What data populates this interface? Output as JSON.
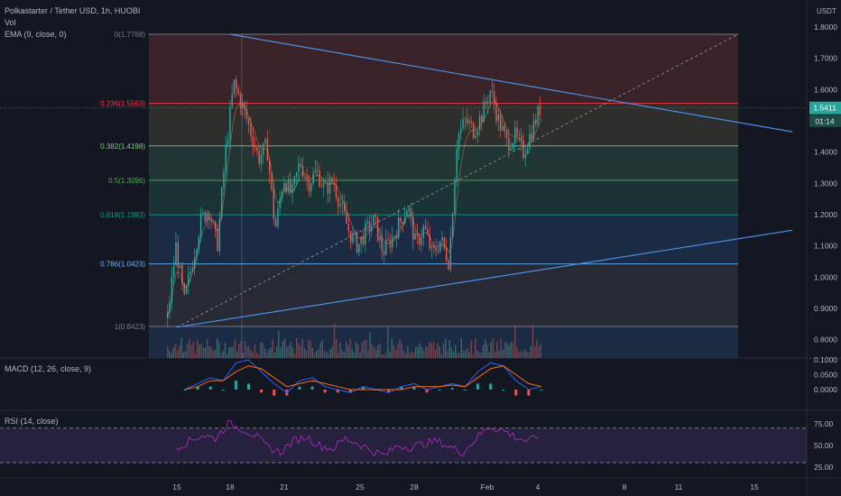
{
  "header": {
    "title": "Polkastarter / Tether USD, 1h, HUOBI",
    "vol_label": "Vol",
    "ema_label": "EMA (9, close, 0)",
    "currency": "USDT"
  },
  "price_tag": {
    "price": "1.5411",
    "countdown": "01:14",
    "color": "#26a69a"
  },
  "chart_data": [
    {
      "type": "candlestick",
      "ylim": [
        0.76,
        1.83
      ],
      "y_ticks": [
        0.8,
        0.9,
        1.0,
        1.1,
        1.2,
        1.3,
        1.4,
        1.5,
        1.6,
        1.7,
        1.8
      ],
      "x_tick_labels": [
        "15",
        "18",
        "21",
        "25",
        "28",
        "Feb",
        "4",
        "8",
        "11",
        "15"
      ],
      "fibonacci": [
        {
          "label": "0(1.7768)",
          "level": 1.7768,
          "color": "#787b86",
          "fill": "#3a2328"
        },
        {
          "label": "0.236(1.5563)",
          "level": 1.5563,
          "color": "#f23645",
          "fill": "#2e2f2c"
        },
        {
          "label": "0.382(1.4198)",
          "level": 1.4198,
          "color": "#81c784",
          "fill": "#213532"
        },
        {
          "label": "0.5(1.3096)",
          "level": 1.3096,
          "color": "#4caf50",
          "fill": "#1a3435"
        },
        {
          "label": "0.618(1.1993)",
          "level": 1.1993,
          "color": "#089981",
          "fill": "#1c2b44"
        },
        {
          "label": "0.786(1.0423)",
          "level": 1.0423,
          "color": "#64b5f6",
          "fill": "#272a34"
        },
        {
          "label": "1(0.8423)",
          "level": 0.8423,
          "color": "#787b86",
          "fill": "#1c2b44"
        }
      ],
      "trendlines": [
        {
          "from": [
            "18",
            1.7768
          ],
          "to": [
            "15'",
            1.465
          ]
        },
        {
          "from": [
            "15",
            0.84
          ],
          "to": [
            "15'",
            1.15
          ]
        }
      ],
      "diagonal": {
        "from": [
          "15",
          0.84
        ],
        "to": [
          "15'",
          1.7768
        ]
      },
      "price_path": [
        0.87,
        1.1,
        0.92,
        1.05,
        1.18,
        1.22,
        1.1,
        1.4,
        1.62,
        1.55,
        1.47,
        1.38,
        1.42,
        1.15,
        1.32,
        1.26,
        1.37,
        1.3,
        1.34,
        1.28,
        1.31,
        1.22,
        1.14,
        1.1,
        1.15,
        1.18,
        1.08,
        1.12,
        1.17,
        1.23,
        1.1,
        1.16,
        1.07,
        1.12,
        1.05,
        1.45,
        1.5,
        1.47,
        1.52,
        1.6,
        1.5,
        1.43,
        1.45,
        1.4,
        1.47,
        1.54
      ]
    },
    {
      "type": "bar",
      "name": "MACD (12, 26, close, 9)",
      "ylim": [
        -0.03,
        0.11
      ],
      "y_ticks": [
        0.1,
        0.05,
        0.0
      ],
      "macd": [
        0.0,
        0.02,
        0.04,
        0.03,
        0.09,
        0.1,
        0.06,
        0.02,
        -0.01,
        0.03,
        0.04,
        0.01,
        0.0,
        -0.01,
        0.01,
        0.0,
        -0.01,
        0.01,
        0.02,
        0.0,
        0.01,
        0.02,
        0.01,
        0.06,
        0.09,
        0.08,
        0.03,
        0.0,
        0.01
      ],
      "signal": [
        0.0,
        0.01,
        0.03,
        0.03,
        0.06,
        0.08,
        0.07,
        0.04,
        0.01,
        0.02,
        0.03,
        0.02,
        0.01,
        0.0,
        0.0,
        0.0,
        0.0,
        0.0,
        0.01,
        0.01,
        0.01,
        0.015,
        0.01,
        0.04,
        0.07,
        0.08,
        0.05,
        0.02,
        0.01
      ]
    },
    {
      "type": "line",
      "name": "RSI (14, close)",
      "ylim": [
        20,
        80
      ],
      "y_ticks": [
        75.0,
        50.0,
        25.0
      ],
      "bands": [
        70,
        30
      ],
      "values": [
        48,
        55,
        62,
        58,
        75,
        70,
        62,
        48,
        42,
        55,
        60,
        50,
        46,
        58,
        52,
        44,
        38,
        50,
        48,
        52,
        55,
        48,
        42,
        58,
        72,
        68,
        60,
        54,
        64
      ]
    }
  ]
}
